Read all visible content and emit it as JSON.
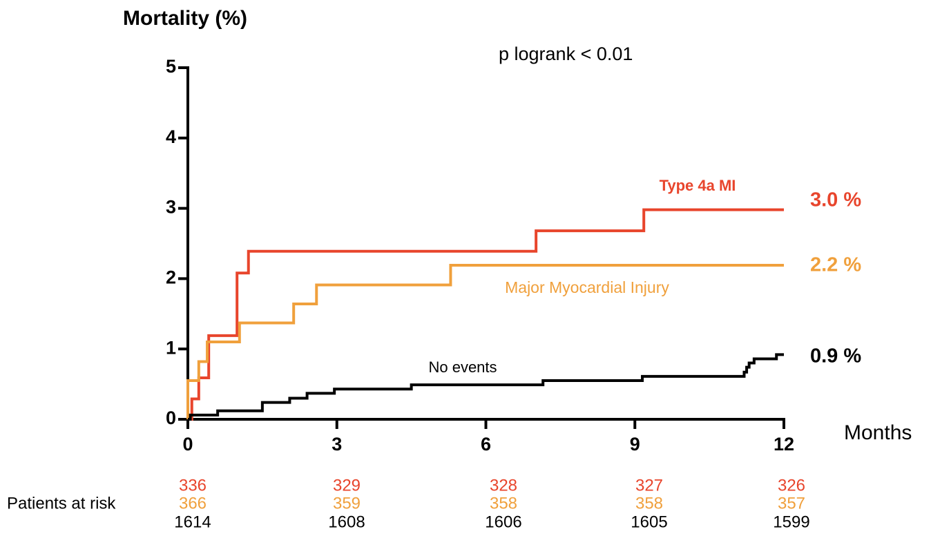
{
  "chart_data": {
    "type": "step",
    "y_label": "Mortality (%)",
    "x_label": "Months",
    "annotation": "p logrank < 0.01",
    "xlim": [
      0,
      12
    ],
    "xticks": [
      0,
      3,
      6,
      9,
      12
    ],
    "ylim": [
      0,
      5
    ],
    "yticks": [
      0,
      1,
      2,
      3,
      4,
      5
    ],
    "series": [
      {
        "name": "Type 4a MI",
        "color": "#e8452c",
        "end_label": "3.0 %",
        "x": [
          0,
          0.08,
          0.22,
          0.42,
          0.99,
          1.22,
          7.01,
          9.18,
          12
        ],
        "values": [
          0,
          0.29,
          0.59,
          1.19,
          2.08,
          2.39,
          2.68,
          2.98,
          2.98
        ]
      },
      {
        "name": "Major  Myocardial Injury",
        "color": "#f0a03c",
        "end_label": "2.2 %",
        "x": [
          0,
          0,
          0.22,
          0.39,
          1.04,
          2.13,
          2.59,
          5.29,
          12
        ],
        "values": [
          0,
          0.55,
          0.82,
          1.1,
          1.37,
          1.64,
          1.91,
          2.19,
          2.19
        ]
      },
      {
        "name": "No events",
        "color": "#000000",
        "end_label": "0.9 %",
        "x": [
          0,
          0.05,
          0.6,
          1.5,
          2.05,
          2.4,
          2.95,
          4.5,
          7.15,
          9.15,
          11.2,
          11.25,
          11.3,
          11.4,
          11.85,
          12
        ],
        "values": [
          0,
          0.06,
          0.12,
          0.24,
          0.3,
          0.37,
          0.43,
          0.49,
          0.55,
          0.61,
          0.67,
          0.74,
          0.8,
          0.86,
          0.92,
          0.92
        ]
      }
    ],
    "risk_table": {
      "label": "Patients at risk",
      "rows": [
        [
          336,
          329,
          328,
          327,
          326
        ],
        [
          366,
          359,
          358,
          358,
          357
        ],
        [
          1614,
          1608,
          1606,
          1605,
          1599
        ]
      ]
    }
  }
}
